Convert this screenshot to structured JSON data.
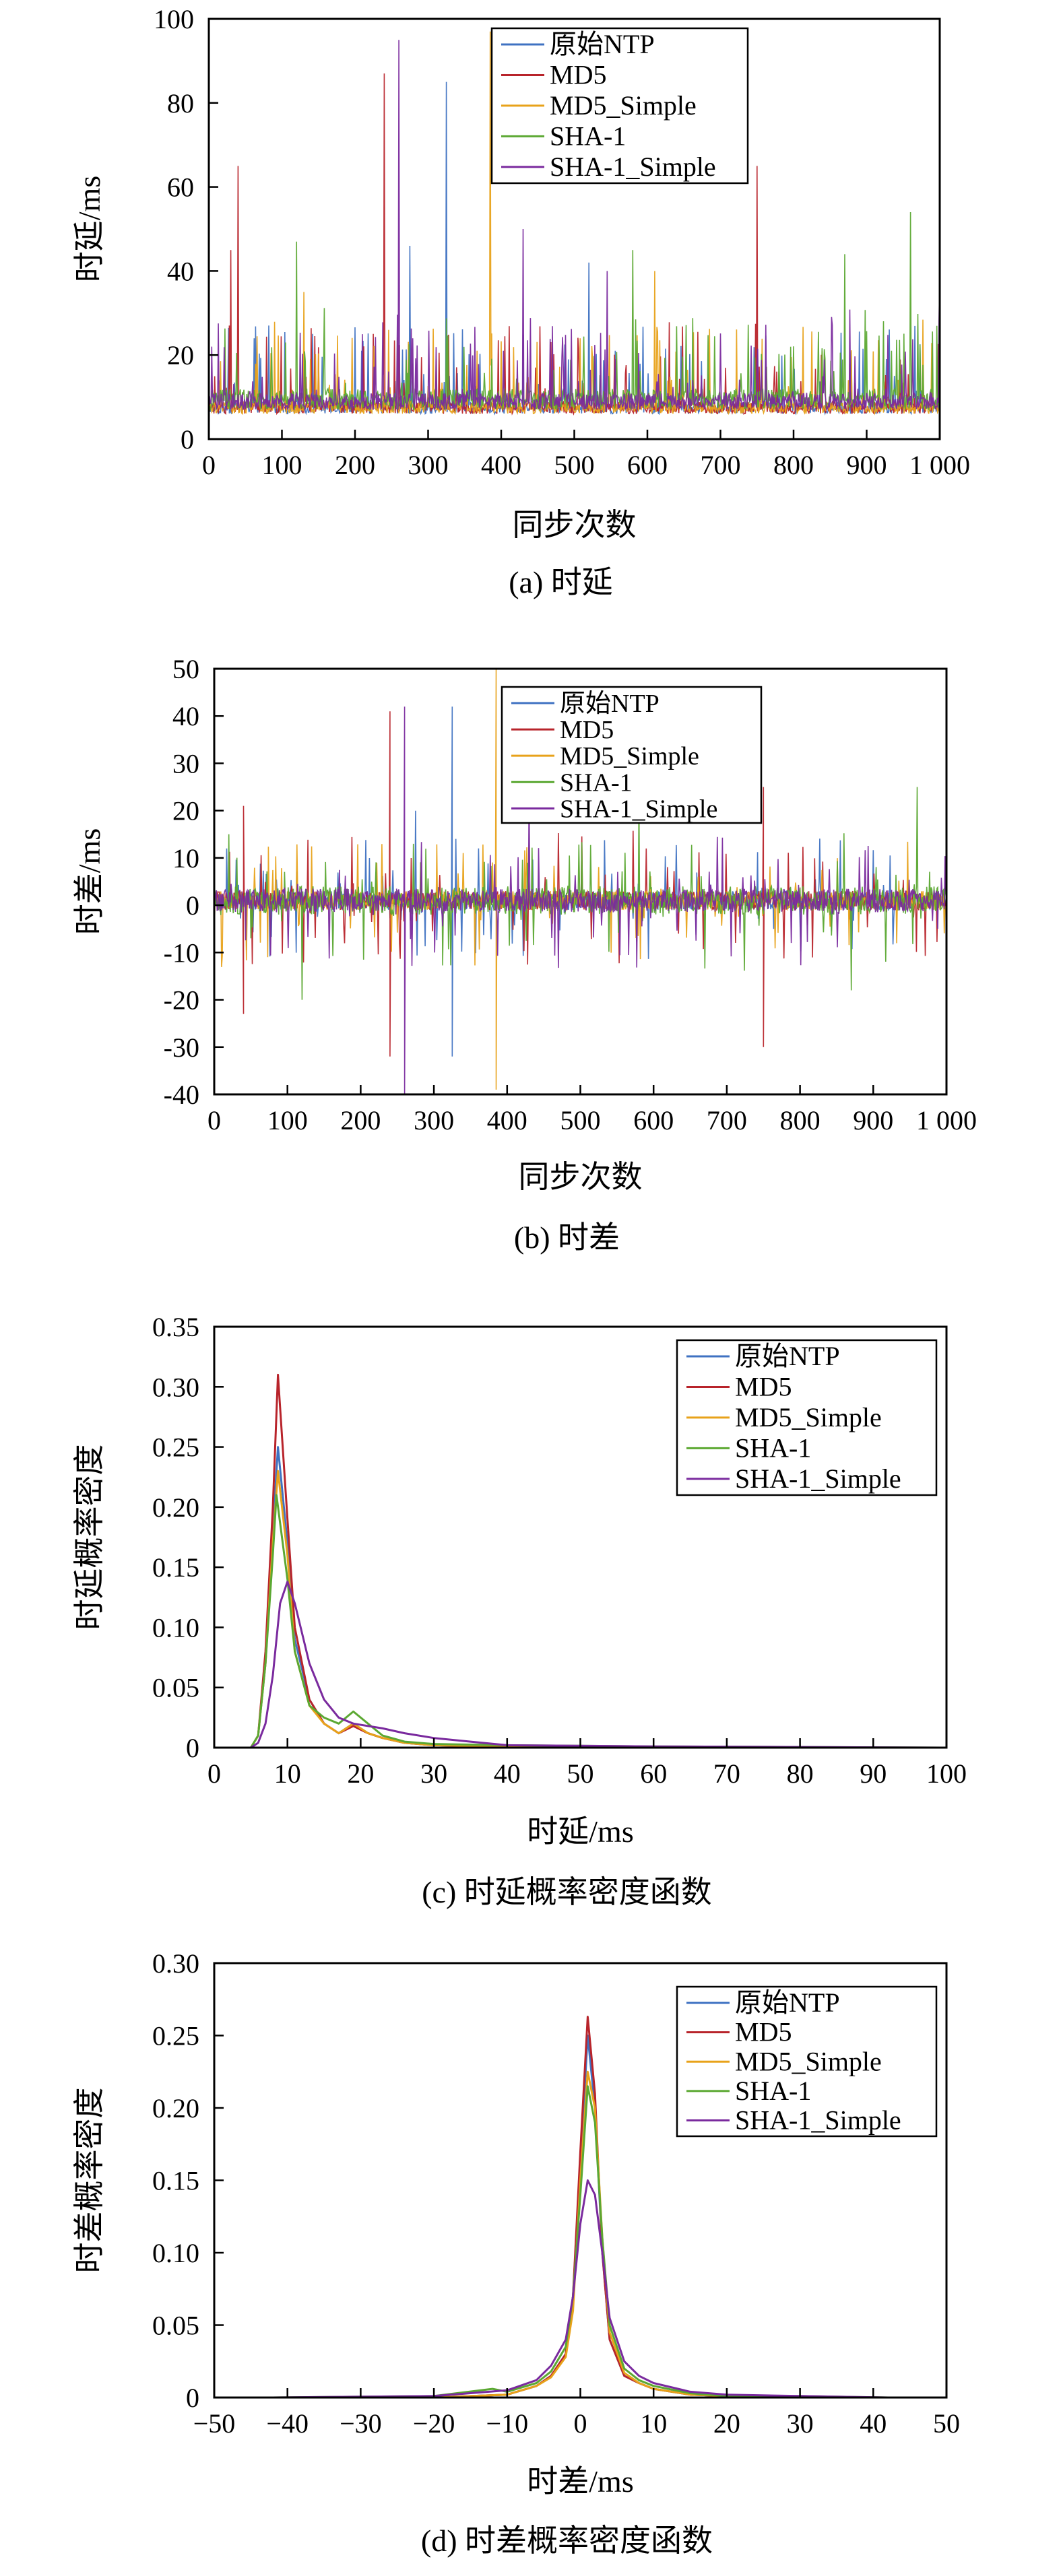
{
  "colors": {
    "原始NTP": "#3f72c2",
    "MD5": "#b8242b",
    "MD5_Simple": "#e8a21a",
    "SHA-1": "#5ba832",
    "SHA-1_Simple": "#7a2a9e"
  },
  "legend_entries": [
    "原始NTP",
    "MD5",
    "MD5_Simple",
    "SHA-1",
    "SHA-1_Simple"
  ],
  "chart_data": [
    {
      "id": "a",
      "type": "line",
      "caption": "(a) 时延",
      "xlabel": "同步次数",
      "ylabel": "时延/ms",
      "xlim": [
        0,
        1000
      ],
      "ylim": [
        0,
        100
      ],
      "xticks": [
        0,
        100,
        200,
        300,
        400,
        500,
        600,
        700,
        800,
        900,
        1000
      ],
      "xtick_labels": [
        "0",
        "100",
        "200",
        "300",
        "400",
        "500",
        "600",
        "700",
        "800",
        "900",
        "1 000"
      ],
      "yticks": [
        0,
        20,
        40,
        60,
        80,
        100
      ],
      "ytick_labels": [
        "0",
        "20",
        "40",
        "60",
        "80",
        "100"
      ],
      "legend_position": "top-right",
      "series_summary": [
        {
          "name": "原始NTP",
          "baseline": 8,
          "spread": 3,
          "peaks": [
            [
              325,
              85
            ],
            [
              275,
              46
            ],
            [
              520,
              42
            ]
          ]
        },
        {
          "name": "MD5",
          "baseline": 8,
          "spread": 3,
          "peaks": [
            [
              40,
              65
            ],
            [
              240,
              87
            ],
            [
              750,
              65
            ],
            [
              30,
              45
            ]
          ]
        },
        {
          "name": "MD5_Simple",
          "baseline": 8,
          "spread": 3,
          "peaks": [
            [
              385,
              97
            ],
            [
              130,
              35
            ],
            [
              610,
              40
            ]
          ]
        },
        {
          "name": "SHA-1",
          "baseline": 9,
          "spread": 5,
          "peaks": [
            [
              960,
              54
            ],
            [
              120,
              47
            ],
            [
              580,
              45
            ],
            [
              870,
              44
            ]
          ]
        },
        {
          "name": "SHA-1_Simple",
          "baseline": 9,
          "spread": 4,
          "peaks": [
            [
              260,
              95
            ],
            [
              430,
              50
            ],
            [
              1000,
              38
            ],
            [
              545,
              40
            ]
          ]
        }
      ]
    },
    {
      "id": "b",
      "type": "line",
      "caption": "(b) 时差",
      "xlabel": "同步次数",
      "ylabel": "时差/ms",
      "xlim": [
        0,
        1000
      ],
      "ylim": [
        -40,
        50
      ],
      "xticks": [
        0,
        100,
        200,
        300,
        400,
        500,
        600,
        700,
        800,
        900,
        1000
      ],
      "xtick_labels": [
        "0",
        "100",
        "200",
        "300",
        "400",
        "500",
        "600",
        "700",
        "800",
        "900",
        "1 000"
      ],
      "yticks": [
        -40,
        -30,
        -20,
        -10,
        0,
        10,
        20,
        30,
        40,
        50
      ],
      "ytick_labels": [
        "-40",
        "-30",
        "-20",
        "-10",
        "0",
        "10",
        "20",
        "30",
        "40",
        "50"
      ],
      "legend_position": "top-right",
      "series_summary": [
        {
          "name": "原始NTP",
          "baseline": 1,
          "spread": 4,
          "peaks": [
            [
              325,
              42
            ],
            [
              325,
              -32
            ],
            [
              275,
              20
            ]
          ]
        },
        {
          "name": "MD5",
          "baseline": 1,
          "spread": 4,
          "peaks": [
            [
              240,
              41
            ],
            [
              240,
              -32
            ],
            [
              750,
              25
            ],
            [
              750,
              -30
            ],
            [
              40,
              -23
            ],
            [
              40,
              21
            ]
          ]
        },
        {
          "name": "MD5_Simple",
          "baseline": 1,
          "spread": 4,
          "peaks": [
            [
              385,
              50
            ],
            [
              385,
              -39
            ]
          ]
        },
        {
          "name": "SHA-1",
          "baseline": 1,
          "spread": 6,
          "peaks": [
            [
              960,
              25
            ],
            [
              870,
              -18
            ],
            [
              120,
              -20
            ],
            [
              580,
              22
            ],
            [
              20,
              15
            ]
          ]
        },
        {
          "name": "SHA-1_Simple",
          "baseline": 1,
          "spread": 5,
          "peaks": [
            [
              260,
              42
            ],
            [
              260,
              -40
            ],
            [
              430,
              24
            ],
            [
              1000,
              16
            ]
          ]
        }
      ]
    },
    {
      "id": "c",
      "type": "line",
      "caption": "(c) 时延概率密度函数",
      "xlabel": "时延/ms",
      "ylabel": "时延概率密度",
      "xlim": [
        0,
        100
      ],
      "ylim": [
        0,
        0.35
      ],
      "xticks": [
        0,
        10,
        20,
        30,
        40,
        50,
        60,
        70,
        80,
        90,
        100
      ],
      "xtick_labels": [
        "0",
        "10",
        "20",
        "30",
        "40",
        "50",
        "60",
        "70",
        "80",
        "90",
        "100"
      ],
      "yticks": [
        0,
        0.05,
        0.1,
        0.15,
        0.2,
        0.25,
        0.3,
        0.35
      ],
      "ytick_labels": [
        "0",
        "0.05",
        "0.10",
        "0.15",
        "0.20",
        "0.25",
        "0.30",
        "0.35"
      ],
      "legend_position": "top-right",
      "series": [
        {
          "name": "原始NTP",
          "x": [
            3,
            5,
            6,
            7,
            8,
            8.7,
            10,
            11,
            13,
            15,
            17,
            19,
            21,
            23,
            26,
            30,
            40,
            60,
            100
          ],
          "y": [
            0,
            0,
            0.01,
            0.07,
            0.18,
            0.25,
            0.17,
            0.09,
            0.04,
            0.02,
            0.012,
            0.02,
            0.012,
            0.008,
            0.004,
            0.002,
            0.001,
            0,
            0
          ]
        },
        {
          "name": "MD5",
          "x": [
            3,
            5,
            6,
            7,
            8,
            8.7,
            10,
            11,
            13,
            15,
            17,
            19,
            21,
            23,
            26,
            30,
            40,
            60,
            100
          ],
          "y": [
            0,
            0,
            0.01,
            0.08,
            0.2,
            0.31,
            0.19,
            0.1,
            0.04,
            0.02,
            0.012,
            0.018,
            0.012,
            0.008,
            0.004,
            0.002,
            0.001,
            0,
            0
          ]
        },
        {
          "name": "MD5_Simple",
          "x": [
            3,
            5,
            6,
            7,
            8,
            8.7,
            10,
            11,
            13,
            15,
            17,
            19,
            21,
            23,
            26,
            30,
            40,
            60,
            100
          ],
          "y": [
            0,
            0,
            0.01,
            0.07,
            0.17,
            0.23,
            0.16,
            0.08,
            0.035,
            0.02,
            0.012,
            0.02,
            0.012,
            0.008,
            0.004,
            0.002,
            0.001,
            0,
            0
          ]
        },
        {
          "name": "SHA-1",
          "x": [
            3,
            5,
            6,
            7,
            8,
            8.5,
            10,
            11,
            13,
            15,
            17,
            19,
            21,
            23,
            26,
            30,
            40,
            60,
            100
          ],
          "y": [
            0,
            0,
            0.01,
            0.07,
            0.16,
            0.21,
            0.14,
            0.08,
            0.035,
            0.025,
            0.02,
            0.03,
            0.02,
            0.01,
            0.005,
            0.003,
            0.002,
            0.001,
            0
          ]
        },
        {
          "name": "SHA-1_Simple",
          "x": [
            3,
            5,
            6,
            7,
            8,
            9,
            10,
            11,
            13,
            15,
            17,
            19,
            21,
            23,
            26,
            30,
            35,
            40,
            60,
            100
          ],
          "y": [
            0,
            0,
            0.004,
            0.02,
            0.06,
            0.12,
            0.138,
            0.12,
            0.07,
            0.04,
            0.025,
            0.02,
            0.018,
            0.016,
            0.012,
            0.008,
            0.005,
            0.002,
            0.001,
            0
          ]
        }
      ]
    },
    {
      "id": "d",
      "type": "line",
      "caption": "(d) 时差概率密度函数",
      "xlabel": "时差/ms",
      "ylabel": "时差概率密度",
      "xlim": [
        -50,
        50
      ],
      "ylim": [
        0,
        0.3
      ],
      "xticks": [
        -50,
        -40,
        -30,
        -20,
        -10,
        0,
        10,
        20,
        30,
        40,
        50
      ],
      "xtick_labels": [
        "−50",
        "−40",
        "−30",
        "−20",
        "−10",
        "0",
        "10",
        "20",
        "30",
        "40",
        "50"
      ],
      "yticks": [
        0,
        0.05,
        0.1,
        0.15,
        0.2,
        0.25,
        0.3
      ],
      "ytick_labels": [
        "0",
        "0.05",
        "0.10",
        "0.15",
        "0.20",
        "0.25",
        "0.30"
      ],
      "legend_position": "top-right",
      "series": [
        {
          "name": "原始NTP",
          "x": [
            -42,
            -20,
            -10,
            -6,
            -4,
            -2,
            -1,
            0,
            1,
            2,
            3,
            4,
            6,
            8,
            10,
            15,
            20,
            30,
            42
          ],
          "y": [
            0,
            0,
            0.002,
            0.008,
            0.015,
            0.03,
            0.07,
            0.16,
            0.25,
            0.2,
            0.1,
            0.04,
            0.015,
            0.01,
            0.006,
            0.002,
            0.001,
            0,
            0
          ]
        },
        {
          "name": "MD5",
          "x": [
            -42,
            -20,
            -10,
            -6,
            -4,
            -2,
            -1,
            0,
            1,
            2,
            3,
            4,
            6,
            8,
            10,
            15,
            20,
            30,
            42
          ],
          "y": [
            0,
            0,
            0.002,
            0.008,
            0.015,
            0.03,
            0.07,
            0.17,
            0.263,
            0.21,
            0.1,
            0.04,
            0.015,
            0.01,
            0.006,
            0.002,
            0.001,
            0,
            0
          ]
        },
        {
          "name": "MD5_Simple",
          "x": [
            -42,
            -20,
            -10,
            -6,
            -4,
            -2,
            -1,
            0,
            1,
            2,
            3,
            4,
            6,
            8,
            10,
            15,
            20,
            30,
            42
          ],
          "y": [
            0,
            0,
            0.002,
            0.008,
            0.014,
            0.028,
            0.06,
            0.15,
            0.225,
            0.2,
            0.11,
            0.045,
            0.017,
            0.01,
            0.006,
            0.002,
            0.001,
            0,
            0
          ]
        },
        {
          "name": "SHA-1",
          "x": [
            -42,
            -20,
            -12,
            -10,
            -6,
            -4,
            -2,
            -1,
            0,
            1,
            2,
            3,
            4,
            6,
            8,
            10,
            15,
            20,
            30,
            42
          ],
          "y": [
            0,
            0.001,
            0.006,
            0.004,
            0.01,
            0.018,
            0.035,
            0.07,
            0.14,
            0.215,
            0.19,
            0.11,
            0.05,
            0.02,
            0.012,
            0.008,
            0.003,
            0.001,
            0.001,
            0
          ]
        },
        {
          "name": "SHA-1_Simple",
          "x": [
            -42,
            -20,
            -10,
            -6,
            -4,
            -2,
            -1,
            0,
            1,
            2,
            3,
            4,
            6,
            8,
            10,
            15,
            20,
            30,
            42
          ],
          "y": [
            0,
            0.001,
            0.005,
            0.012,
            0.022,
            0.04,
            0.07,
            0.12,
            0.15,
            0.14,
            0.1,
            0.055,
            0.025,
            0.015,
            0.01,
            0.004,
            0.002,
            0.001,
            0
          ]
        }
      ]
    }
  ]
}
